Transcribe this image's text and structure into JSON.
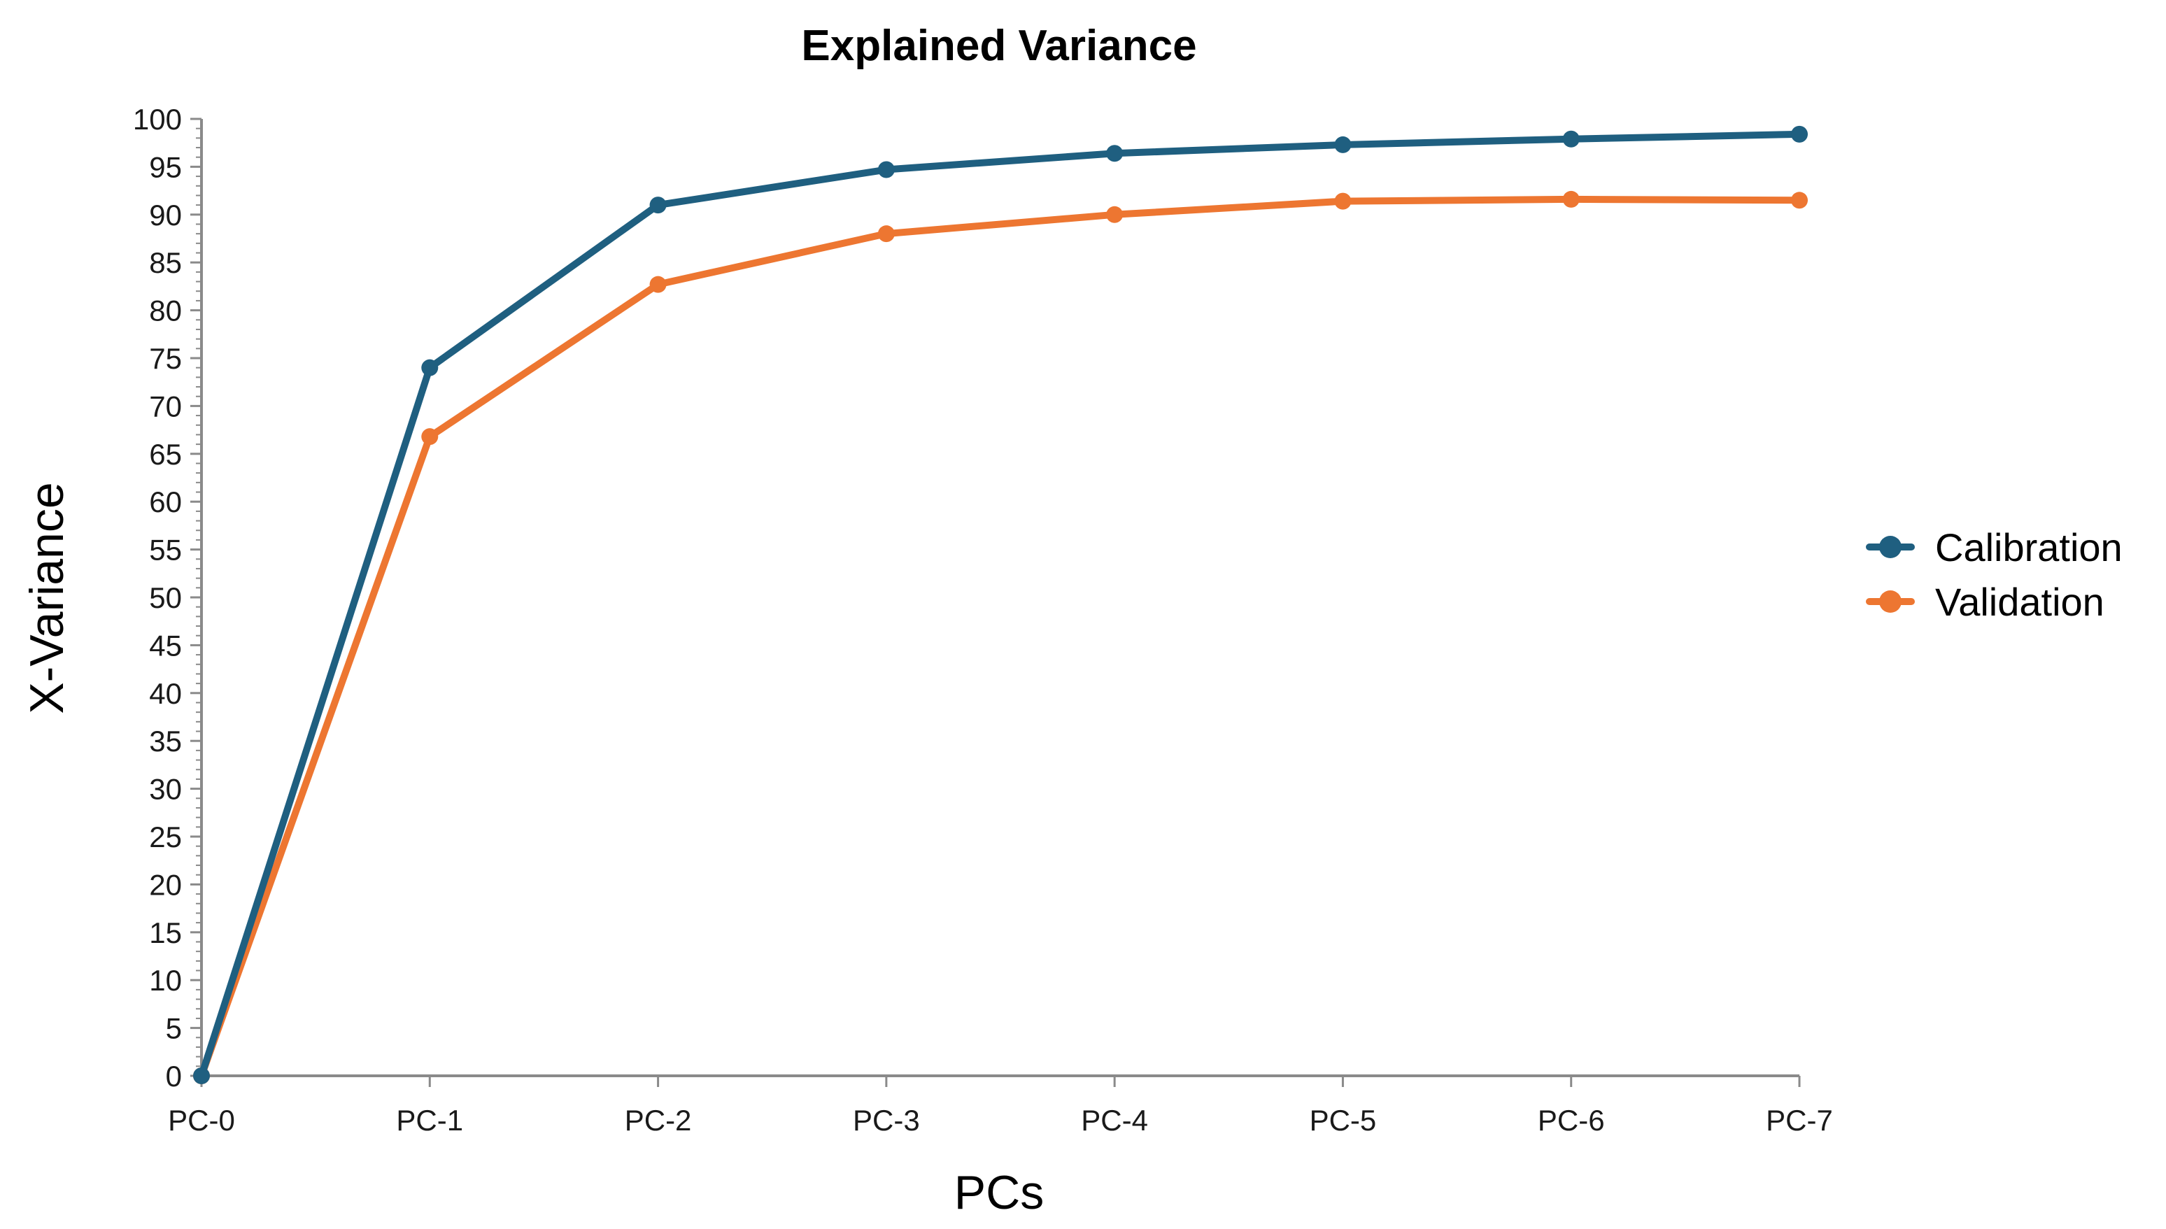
{
  "chart_data": {
    "type": "line",
    "title": "Explained Variance",
    "xlabel": "PCs",
    "ylabel": "X-Variance",
    "categories": [
      "PC-0",
      "PC-1",
      "PC-2",
      "PC-3",
      "PC-4",
      "PC-5",
      "PC-6",
      "PC-7"
    ],
    "ylim": [
      0,
      100
    ],
    "ytick_step": 5,
    "grid": false,
    "legend_position": "right",
    "series": [
      {
        "name": "Calibration",
        "color": "#1f5f80",
        "values": [
          0,
          74,
          91,
          94.7,
          96.4,
          97.3,
          97.9,
          98.4
        ]
      },
      {
        "name": "Validation",
        "color": "#ed7631",
        "values": [
          0,
          66.8,
          82.7,
          88,
          90,
          91.4,
          91.6,
          91.5
        ]
      }
    ]
  }
}
